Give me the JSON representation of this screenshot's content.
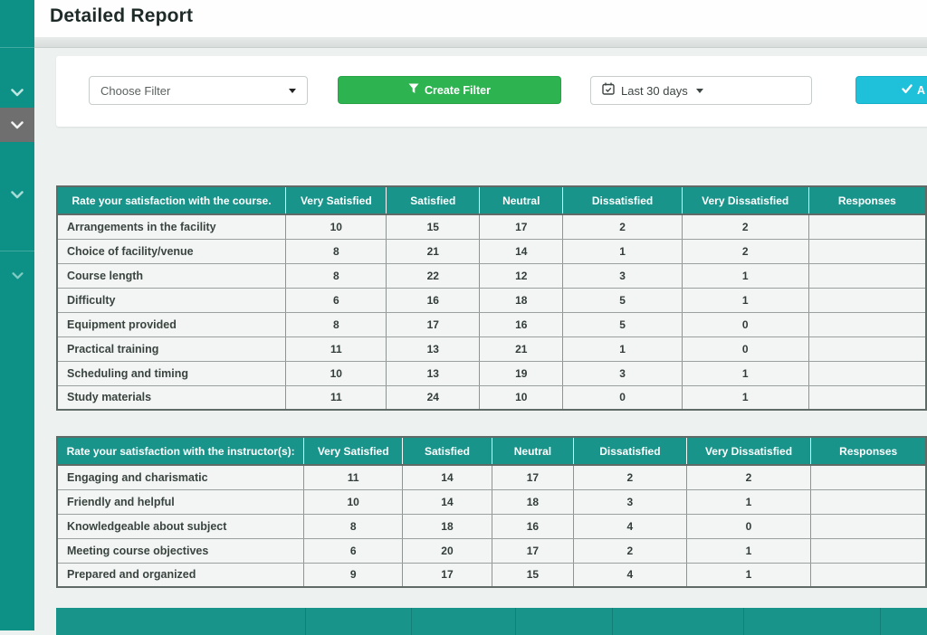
{
  "page_title": "Detailed Report",
  "colors": {
    "teal_header": "#18948b",
    "sidebar_teal": "#0d9187",
    "sidebar_active_gray": "#6e6f6e",
    "green_button": "#2eb351",
    "cyan_button": "#1ec0da"
  },
  "sidebar": {
    "items": [
      {
        "icon": "chevron-down-icon"
      },
      {
        "icon": "chevron-down-icon",
        "active": true
      },
      {
        "icon": "chevron-down-icon"
      },
      {
        "icon": "chevron-down-icon"
      }
    ]
  },
  "filters": {
    "choose_filter_value": "Choose Filter",
    "create_filter_label": "Create Filter",
    "date_range_value": "Last 30 days",
    "apply_label": "A"
  },
  "tables": [
    {
      "title_column": "Rate your satisfaction with the course.",
      "columns": [
        "Very Satisfied",
        "Satisfied",
        "Neutral",
        "Dissatisfied",
        "Very Dissatisfied",
        "Responses"
      ],
      "rows": [
        {
          "label": "Arrangements in the facility",
          "values": [
            "10",
            "15",
            "17",
            "2",
            "2",
            ""
          ]
        },
        {
          "label": "Choice of facility/venue",
          "values": [
            "8",
            "21",
            "14",
            "1",
            "2",
            ""
          ]
        },
        {
          "label": "Course length",
          "values": [
            "8",
            "22",
            "12",
            "3",
            "1",
            ""
          ]
        },
        {
          "label": "Difficulty",
          "values": [
            "6",
            "16",
            "18",
            "5",
            "1",
            ""
          ]
        },
        {
          "label": "Equipment provided",
          "values": [
            "8",
            "17",
            "16",
            "5",
            "0",
            ""
          ]
        },
        {
          "label": "Practical training",
          "values": [
            "11",
            "13",
            "21",
            "1",
            "0",
            ""
          ]
        },
        {
          "label": "Scheduling and timing",
          "values": [
            "10",
            "13",
            "19",
            "3",
            "1",
            ""
          ]
        },
        {
          "label": "Study materials",
          "values": [
            "11",
            "24",
            "10",
            "0",
            "1",
            ""
          ]
        }
      ]
    },
    {
      "title_column": "Rate your satisfaction with the instructor(s):",
      "columns": [
        "Very Satisfied",
        "Satisfied",
        "Neutral",
        "Dissatisfied",
        "Very Dissatisfied",
        "Responses"
      ],
      "rows": [
        {
          "label": "Engaging and charismatic",
          "values": [
            "11",
            "14",
            "17",
            "2",
            "2",
            ""
          ]
        },
        {
          "label": "Friendly and helpful",
          "values": [
            "10",
            "14",
            "18",
            "3",
            "1",
            ""
          ]
        },
        {
          "label": "Knowledgeable about subject",
          "values": [
            "8",
            "18",
            "16",
            "4",
            "0",
            ""
          ]
        },
        {
          "label": "Meeting course objectives",
          "values": [
            "6",
            "20",
            "17",
            "2",
            "1",
            ""
          ]
        },
        {
          "label": "Prepared and organized",
          "values": [
            "9",
            "17",
            "15",
            "4",
            "1",
            ""
          ]
        }
      ]
    }
  ]
}
